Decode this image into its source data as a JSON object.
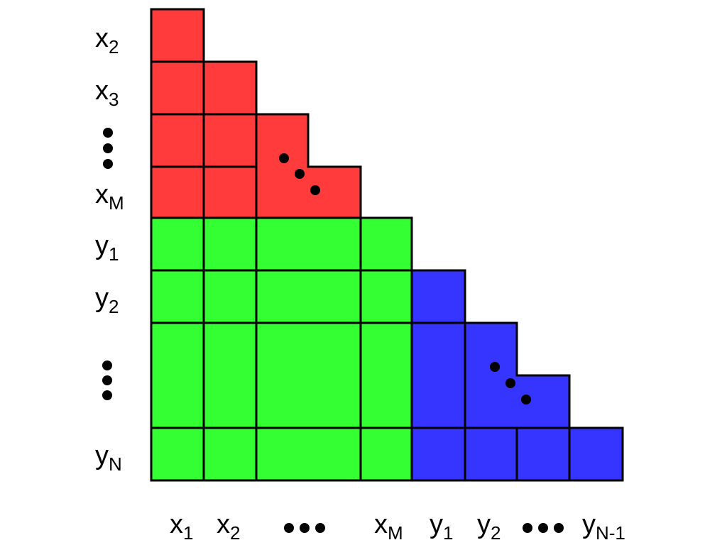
{
  "colors": {
    "red_block": "#ff3b3b",
    "green_block": "#33ff33",
    "blue_block": "#3535ff",
    "outline": "#000000"
  },
  "row_labels": [
    {
      "base": "x",
      "sub": "2"
    },
    {
      "base": "x",
      "sub": "3"
    },
    {
      "base": "x",
      "sub": "M"
    },
    {
      "base": "y",
      "sub": "1"
    },
    {
      "base": "y",
      "sub": "2"
    },
    {
      "base": "y",
      "sub": "N"
    }
  ],
  "column_labels": [
    {
      "base": "x",
      "sub": "1"
    },
    {
      "base": "x",
      "sub": "2"
    },
    {
      "base": "x",
      "sub": "M"
    },
    {
      "base": "y",
      "sub": "1"
    },
    {
      "base": "y",
      "sub": "2"
    },
    {
      "base": "y",
      "sub": "N-1"
    }
  ]
}
